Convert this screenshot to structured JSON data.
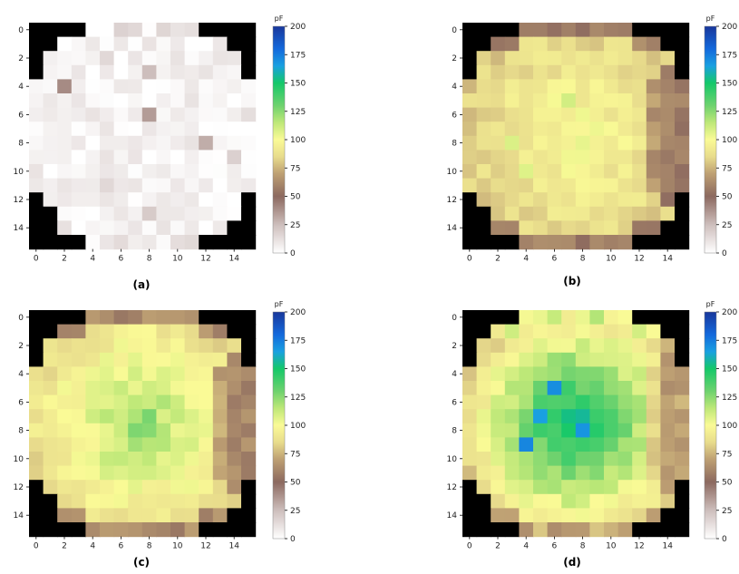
{
  "chart_data": [
    {
      "type": "heatmap",
      "panel_label": "(a)",
      "grid_size": 16,
      "x_ticks": [
        "0",
        "2",
        "4",
        "6",
        "8",
        "10",
        "12",
        "14"
      ],
      "y_ticks": [
        "0",
        "2",
        "4",
        "6",
        "8",
        "10",
        "12",
        "14"
      ],
      "colorbar": {
        "unit": "pF",
        "min": 0,
        "max": 200,
        "ticks": [
          "0",
          "25",
          "50",
          "75",
          "100",
          "125",
          "150",
          "175",
          "200"
        ]
      },
      "base_value": 5,
      "center_value": 5,
      "radius_falloff": 0,
      "right_edge_value": 5,
      "bottom_edge_value": 5,
      "top_edge_value": 5,
      "spots": [
        {
          "r": 4,
          "c": 2,
          "v": 40
        },
        {
          "r": 6,
          "c": 8,
          "v": 35
        },
        {
          "r": 8,
          "c": 12,
          "v": 30
        },
        {
          "r": 3,
          "c": 8,
          "v": 25
        },
        {
          "r": 13,
          "c": 8,
          "v": 20
        },
        {
          "r": 2,
          "c": 5,
          "v": 15
        },
        {
          "r": 11,
          "c": 5,
          "v": 15
        },
        {
          "r": 9,
          "c": 14,
          "v": 18
        },
        {
          "r": 0,
          "c": 7,
          "v": 15
        }
      ],
      "summary": "approx. 0-20 pF across the sensor, isolated spots up to ~40 pF"
    },
    {
      "type": "heatmap",
      "panel_label": "(b)",
      "grid_size": 16,
      "x_ticks": [
        "0",
        "2",
        "4",
        "6",
        "8",
        "10",
        "12",
        "14"
      ],
      "y_ticks": [
        "0",
        "2",
        "4",
        "6",
        "8",
        "10",
        "12",
        "14"
      ],
      "colorbar": {
        "unit": "pF",
        "min": 0,
        "max": 200,
        "ticks": [
          "0",
          "25",
          "50",
          "75",
          "100",
          "125",
          "150",
          "175",
          "200"
        ]
      },
      "base_value": 88,
      "center_value": 102,
      "radius_falloff": 2.5,
      "right_edge_value": 45,
      "bottom_edge_value": 40,
      "top_edge_value": 45,
      "spots": [
        {
          "r": 5,
          "c": 7,
          "v": 110
        },
        {
          "r": 8,
          "c": 3,
          "v": 108
        },
        {
          "r": 10,
          "c": 4,
          "v": 107
        }
      ],
      "summary": "approx. 75-110 pF interior, 30-60 pF at the edge"
    },
    {
      "type": "heatmap",
      "panel_label": "(c)",
      "grid_size": 16,
      "x_ticks": [
        "0",
        "2",
        "4",
        "6",
        "8",
        "10",
        "12",
        "14"
      ],
      "y_ticks": [
        "0",
        "2",
        "4",
        "6",
        "8",
        "10",
        "12",
        "14"
      ],
      "colorbar": {
        "unit": "pF",
        "min": 0,
        "max": 200,
        "ticks": [
          "0",
          "25",
          "50",
          "75",
          "100",
          "125",
          "150",
          "175",
          "200"
        ]
      },
      "base_value": 92,
      "center_value": 122,
      "radius_falloff": 4.5,
      "right_edge_value": 45,
      "bottom_edge_value": 42,
      "top_edge_value": 48,
      "spots": [
        {
          "r": 7,
          "c": 8,
          "v": 128
        },
        {
          "r": 8,
          "c": 7,
          "v": 127
        }
      ],
      "summary": "approx. 95-128 pF interior, 40-60 pF at the edge"
    },
    {
      "type": "heatmap",
      "panel_label": "(d)",
      "grid_size": 16,
      "x_ticks": [
        "0",
        "2",
        "4",
        "6",
        "8",
        "10",
        "12",
        "14"
      ],
      "y_ticks": [
        "0",
        "2",
        "4",
        "6",
        "8",
        "10",
        "12",
        "14"
      ],
      "colorbar": {
        "unit": "pF",
        "min": 0,
        "max": 200,
        "ticks": [
          "0",
          "25",
          "50",
          "75",
          "100",
          "125",
          "150",
          "175",
          "200"
        ]
      },
      "base_value": 100,
      "center_value": 158,
      "radius_falloff": 9,
      "right_edge_value": 62,
      "bottom_edge_value": 70,
      "top_edge_value": 105,
      "spots": [
        {
          "r": 5,
          "c": 6,
          "v": 170
        },
        {
          "r": 9,
          "c": 4,
          "v": 172
        },
        {
          "r": 8,
          "c": 8,
          "v": 168
        },
        {
          "r": 7,
          "c": 5,
          "v": 165
        }
      ],
      "summary": "approx. 140-172 pF centre, 100-130 pF towards the edge"
    }
  ]
}
